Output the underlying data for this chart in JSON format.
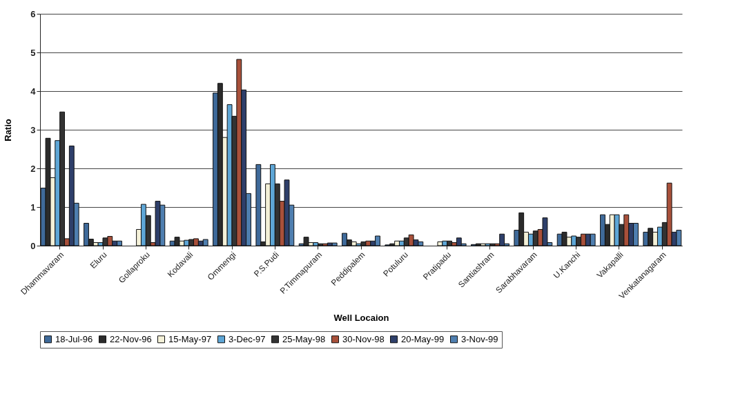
{
  "chart_data": {
    "type": "bar",
    "xlabel": "Well Locaion",
    "ylabel": "Ratio",
    "ylim": [
      0,
      6
    ],
    "yticks": [
      0,
      1,
      2,
      3,
      4,
      5,
      6
    ],
    "grid": "y",
    "legend": "bottom",
    "categories": [
      "Dhammavaram",
      "Eluru",
      "Gollaproku",
      "Kodavali",
      "Ommengi",
      "P.S.Pudi",
      "P.Timmapuram",
      "Peddipalem",
      "Potuluru",
      "Pratipadu",
      "Santiashram",
      "Sarabhavaram",
      "U.Kanchi",
      "Vakapalli",
      "Venkatanagaram"
    ],
    "series": [
      {
        "name": "18-Jul-96",
        "color": "#3f6a9a",
        "values": [
          1.49,
          0.58,
          null,
          0.12,
          3.95,
          2.1,
          0.05,
          0.32,
          0.02,
          null,
          0.03,
          0.4,
          0.3,
          0.8,
          0.35
        ]
      },
      {
        "name": "22-Nov-96",
        "color": "#2b2b2b",
        "values": [
          2.78,
          0.17,
          null,
          0.22,
          4.2,
          0.1,
          0.22,
          0.15,
          0.05,
          null,
          0.05,
          0.85,
          0.35,
          0.55,
          0.45
        ]
      },
      {
        "name": "15-May-97",
        "color": "#f4f1d8",
        "values": [
          1.76,
          0.08,
          0.42,
          0.12,
          2.8,
          1.6,
          0.08,
          0.1,
          0.12,
          0.1,
          0.05,
          0.35,
          0.22,
          0.8,
          0.35
        ]
      },
      {
        "name": "3-Dec-97",
        "color": "#5ea6d6",
        "values": [
          2.72,
          0.08,
          1.07,
          0.14,
          3.65,
          2.1,
          0.08,
          0.05,
          0.12,
          0.12,
          0.05,
          0.3,
          0.25,
          0.8,
          0.48
        ]
      },
      {
        "name": "25-May-98",
        "color": "#333333",
        "values": [
          3.46,
          0.2,
          0.78,
          0.16,
          3.35,
          1.6,
          0.05,
          0.1,
          0.2,
          0.12,
          0.05,
          0.38,
          0.22,
          0.55,
          0.6
        ]
      },
      {
        "name": "30-Nov-98",
        "color": "#a8503a",
        "values": [
          0.18,
          0.24,
          0.08,
          0.18,
          4.82,
          1.15,
          0.05,
          0.12,
          0.28,
          0.08,
          0.05,
          0.42,
          0.3,
          0.8,
          1.62
        ]
      },
      {
        "name": "20-May-99",
        "color": "#2e3f6a",
        "values": [
          2.58,
          0.12,
          1.15,
          0.12,
          4.03,
          1.7,
          0.07,
          0.12,
          0.15,
          0.2,
          0.3,
          0.72,
          0.3,
          0.58,
          0.35
        ]
      },
      {
        "name": "3-Nov-99",
        "color": "#4f7fb0",
        "values": [
          1.1,
          0.12,
          1.05,
          0.16,
          1.35,
          1.05,
          0.07,
          0.25,
          0.1,
          0.05,
          0.05,
          0.08,
          0.3,
          0.58,
          0.4
        ]
      }
    ]
  }
}
